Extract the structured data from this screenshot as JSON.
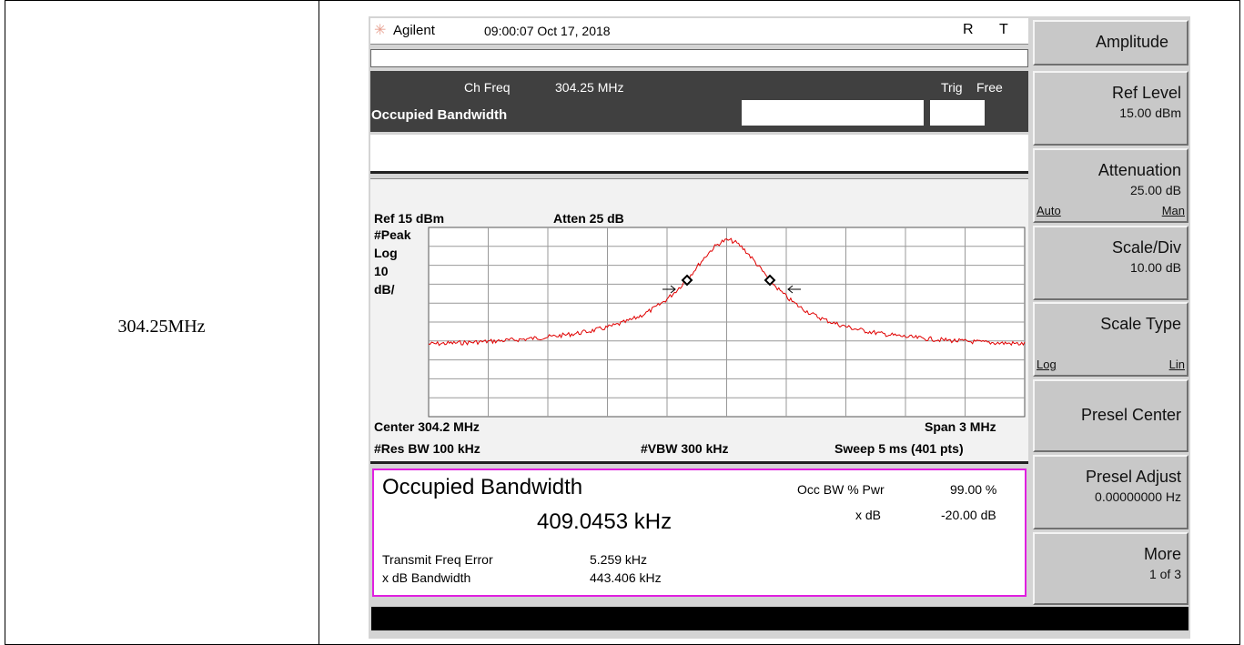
{
  "cell": "304.25MHz",
  "header": {
    "brand": "Agilent",
    "datetime": "09:00:07 Oct 17, 2018",
    "status": [
      "R",
      "T"
    ]
  },
  "channel": {
    "ch_freq_label": "Ch Freq",
    "ch_freq": "304.25 MHz",
    "trig_label": "Trig",
    "trig": "Free",
    "mode": "Occupied Bandwidth"
  },
  "plot": {
    "ref": "Ref 15 dBm",
    "atten": "Atten 25 dB",
    "scale_labels": [
      "#Peak",
      "Log",
      "10",
      "dB/"
    ],
    "center": "Center 304.2 MHz",
    "span": "Span 3 MHz",
    "res_bw": "#Res BW 100 kHz",
    "vbw": "#VBW 300 kHz",
    "sweep": "Sweep 5 ms (401 pts)"
  },
  "results": {
    "title": "Occupied Bandwidth",
    "value": "409.0453 kHz",
    "occ_label": "Occ BW % Pwr",
    "occ_value": "99.00 %",
    "xdb_label": "x dB",
    "xdb_value": "-20.00 dB",
    "rows": [
      [
        "Transmit Freq Error",
        "5.259 kHz"
      ],
      [
        "x dB Bandwidth",
        "443.406 kHz"
      ]
    ]
  },
  "softkeys": [
    {
      "title": "Amplitude"
    },
    {
      "title": "Ref Level",
      "value": "15.00 dBm"
    },
    {
      "title": "Attenuation",
      "value": "25.00 dB",
      "left": "Auto",
      "right": "Man"
    },
    {
      "title": "Scale/Div",
      "value": "10.00 dB"
    },
    {
      "title": "Scale Type",
      "left": "Log",
      "right": "Lin"
    },
    {
      "title": "Presel Center"
    },
    {
      "title": "Presel Adjust",
      "value": "0.00000000  Hz"
    },
    {
      "title": "More",
      "value": "1 of 3"
    }
  ]
}
